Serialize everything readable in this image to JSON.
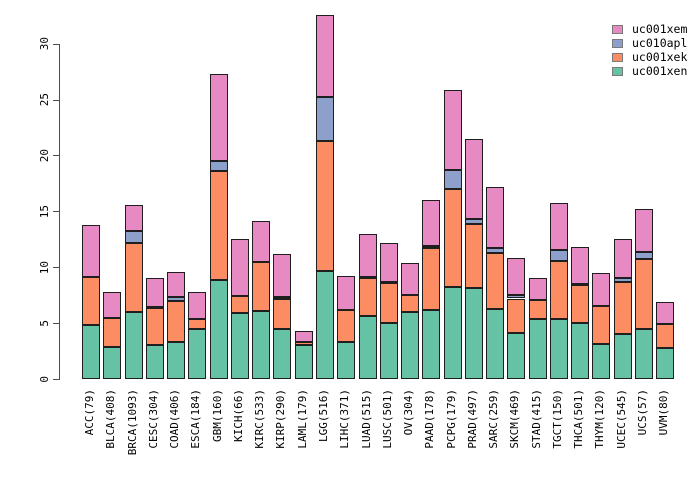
{
  "chart_data": {
    "type": "bar",
    "subtype": "stacked",
    "title": "",
    "xlabel": "",
    "ylabel": "",
    "ylim": [
      0,
      33
    ],
    "yticks": [
      0,
      5,
      10,
      15,
      20,
      25,
      30
    ],
    "grid": false,
    "legend_position": "top-right",
    "legend_order": [
      "uc001xem",
      "uc010apl",
      "uc001xek",
      "uc001xen"
    ],
    "bar_border_color": "#1f1f1f",
    "axis_color": "#4d4d4d",
    "categories": [
      "ACC(79)",
      "BLCA(408)",
      "BRCA(1093)",
      "CESC(304)",
      "COAD(406)",
      "ESCA(184)",
      "GBM(160)",
      "KICH(66)",
      "KIRC(533)",
      "KIRP(290)",
      "LAML(179)",
      "LGG(516)",
      "LIHC(371)",
      "LUAD(515)",
      "LUSC(501)",
      "OV(304)",
      "PAAD(178)",
      "PCPG(179)",
      "PRAD(497)",
      "SARC(259)",
      "SKCM(469)",
      "STAD(415)",
      "TGCT(150)",
      "THCA(501)",
      "THYM(120)",
      "UCEC(545)",
      "UCS(57)",
      "UVM(80)"
    ],
    "series": [
      {
        "name": "uc001xen",
        "color": "#66C2A5",
        "values": [
          4.85,
          2.9,
          6.0,
          3.05,
          3.35,
          4.5,
          8.85,
          5.9,
          6.1,
          4.5,
          3.05,
          9.65,
          3.3,
          5.6,
          5.05,
          5.95,
          6.15,
          8.2,
          8.1,
          6.25,
          4.1,
          5.4,
          5.35,
          5.0,
          3.1,
          4.0,
          4.45,
          2.8
        ]
      },
      {
        "name": "uc001xek",
        "color": "#FC8D62",
        "values": [
          4.3,
          2.55,
          6.2,
          3.3,
          3.65,
          0.85,
          9.75,
          1.5,
          4.4,
          2.7,
          0.3,
          11.65,
          2.9,
          3.45,
          3.5,
          1.6,
          5.6,
          8.8,
          5.8,
          5.05,
          3.1,
          1.65,
          5.2,
          3.4,
          3.45,
          4.65,
          6.25,
          2.1
        ]
      },
      {
        "name": "uc010apl",
        "color": "#8DA0CB",
        "values": [
          0,
          0,
          1.0,
          0.1,
          0.3,
          0,
          0.9,
          0,
          0,
          0.15,
          0,
          3.95,
          0,
          0.1,
          0.1,
          0,
          0.15,
          1.7,
          0.45,
          0.4,
          0.35,
          0,
          1.0,
          0.1,
          0,
          0.4,
          0.7,
          0
        ]
      },
      {
        "name": "uc001xem",
        "color": "#E78AC3",
        "values": [
          4.65,
          2.3,
          2.4,
          2.55,
          2.3,
          2.45,
          7.75,
          5.15,
          3.6,
          3.8,
          0.9,
          7.35,
          3.0,
          3.8,
          3.5,
          2.8,
          4.1,
          7.15,
          7.15,
          5.45,
          3.3,
          2.0,
          4.15,
          3.35,
          2.9,
          3.45,
          3.8,
          2.0
        ]
      }
    ]
  }
}
